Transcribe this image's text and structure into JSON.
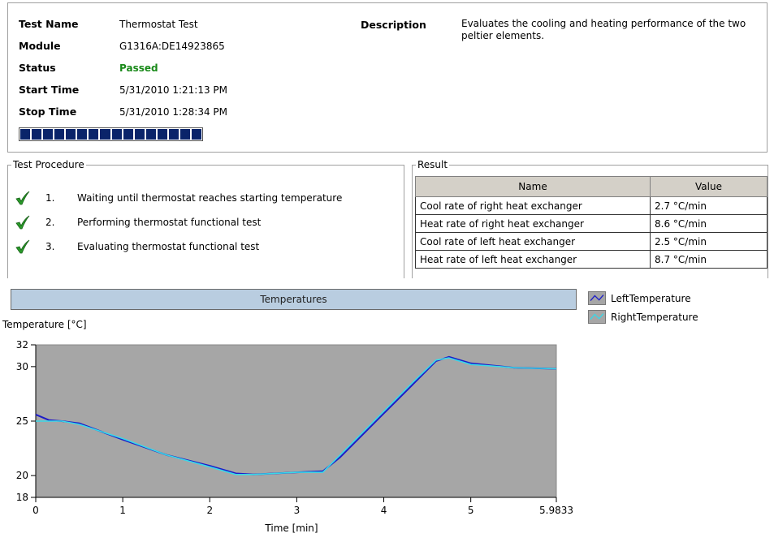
{
  "info": {
    "test_name_label": "Test Name",
    "test_name": "Thermostat Test",
    "module_label": "Module",
    "module": "G1316A:DE14923865",
    "status_label": "Status",
    "status": "Passed",
    "start_label": "Start Time",
    "start": "5/31/2010 1:21:13 PM",
    "stop_label": "Stop Time",
    "stop": "5/31/2010 1:28:34 PM",
    "progress": 1.0,
    "description_label": "Description",
    "description": "Evaluates the cooling and heating performance of the two peltier elements."
  },
  "procedure": {
    "title": "Test Procedure",
    "steps": [
      {
        "num": "1.",
        "text": "Waiting until thermostat reaches starting temperature",
        "done": true
      },
      {
        "num": "2.",
        "text": "Performing thermostat functional test",
        "done": true
      },
      {
        "num": "3.",
        "text": "Evaluating thermostat functional test",
        "done": true
      }
    ]
  },
  "result": {
    "title": "Result",
    "columns": [
      "Name",
      "Value"
    ],
    "rows": [
      [
        "Cool rate of right heat exchanger",
        "2.7 °C/min"
      ],
      [
        "Heat rate of right heat exchanger",
        "8.6 °C/min"
      ],
      [
        "Cool rate of left heat exchanger",
        "2.5 °C/min"
      ],
      [
        "Heat rate of left heat exchanger",
        "8.7 °C/min"
      ]
    ]
  },
  "colors": {
    "plot_background": "#a6a6a6",
    "left_series": "#1c1cc8",
    "right_series": "#38d8e8",
    "check": "#2a9a2a"
  },
  "chart_data": {
    "type": "line",
    "title": "Temperatures",
    "ylabel": "Temperature [°C]",
    "xlabel": "Time [min]",
    "xlim": [
      0,
      5.9833
    ],
    "ylim": [
      18,
      32
    ],
    "x_ticks": [
      "0",
      "1",
      "2",
      "3",
      "4",
      "5",
      "5.9833"
    ],
    "y_ticks": [
      "32",
      "30",
      "25",
      "20",
      "18"
    ],
    "legend": "right",
    "series": [
      {
        "name": "LeftTemperature",
        "x": [
          0,
          0.15,
          0.3,
          0.5,
          1.0,
          1.5,
          2.0,
          2.3,
          2.5,
          3.0,
          3.3,
          3.5,
          4.0,
          4.3,
          4.6,
          4.75,
          5.0,
          5.5,
          5.9833
        ],
        "y": [
          25.6,
          25.1,
          25.0,
          24.8,
          23.3,
          21.9,
          20.9,
          20.2,
          20.1,
          20.3,
          20.4,
          21.7,
          25.7,
          28.1,
          30.5,
          30.9,
          30.3,
          29.9,
          29.8
        ]
      },
      {
        "name": "RightTemperature",
        "x": [
          0,
          0.3,
          0.5,
          1.0,
          1.5,
          2.0,
          2.3,
          2.5,
          3.0,
          3.3,
          3.5,
          4.0,
          4.3,
          4.6,
          4.75,
          5.0,
          5.5,
          5.9833
        ],
        "y": [
          25.0,
          25.0,
          24.7,
          23.4,
          21.9,
          20.8,
          20.1,
          20.1,
          20.3,
          20.3,
          21.9,
          25.9,
          28.3,
          30.6,
          30.8,
          30.2,
          29.9,
          29.8
        ]
      }
    ]
  }
}
